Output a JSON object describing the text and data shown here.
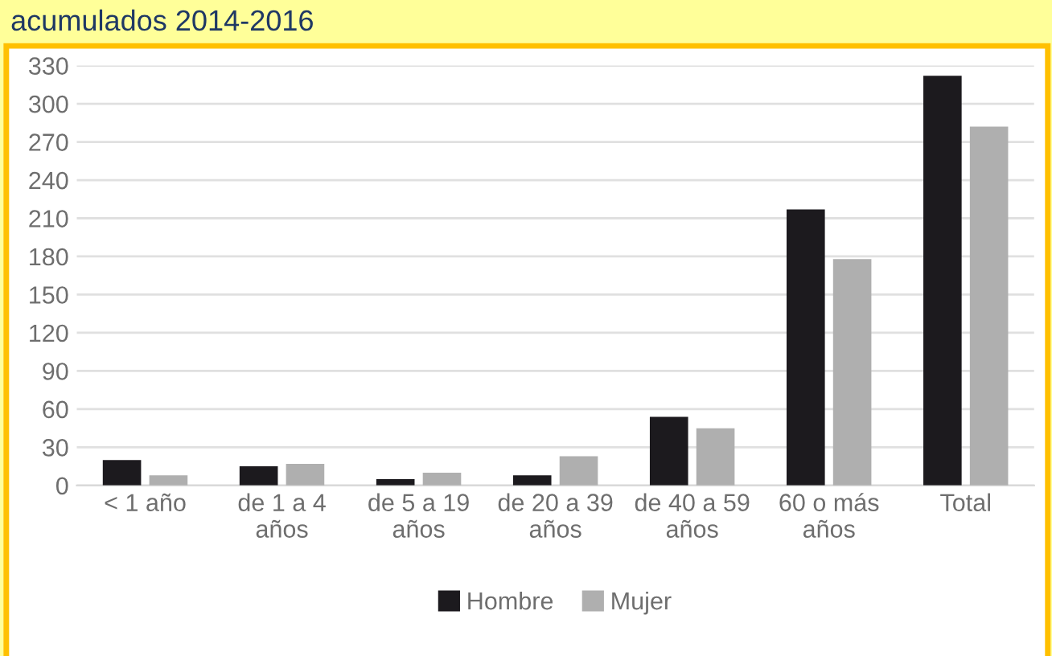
{
  "chart_data": {
    "type": "bar",
    "title": "acumulados 2014-2016",
    "categories": [
      "< 1 año",
      "de 1 a 4\naños",
      "de 5 a 19\naños",
      "de 20 a 39\naños",
      "de 40 a 59\naños",
      "60 o más\naños",
      "Total"
    ],
    "series": [
      {
        "name": "Hombre",
        "color": "#1c1a1e",
        "values": [
          20,
          15,
          5,
          8,
          54,
          217,
          322
        ]
      },
      {
        "name": "Mujer",
        "color": "#afafaf",
        "values": [
          8,
          17,
          10,
          23,
          45,
          178,
          282
        ]
      }
    ],
    "ylim": [
      0,
      330
    ],
    "yticks": [
      0,
      30,
      60,
      90,
      120,
      150,
      180,
      210,
      240,
      270,
      300,
      330
    ],
    "grid": "y",
    "legend": "bottom"
  }
}
